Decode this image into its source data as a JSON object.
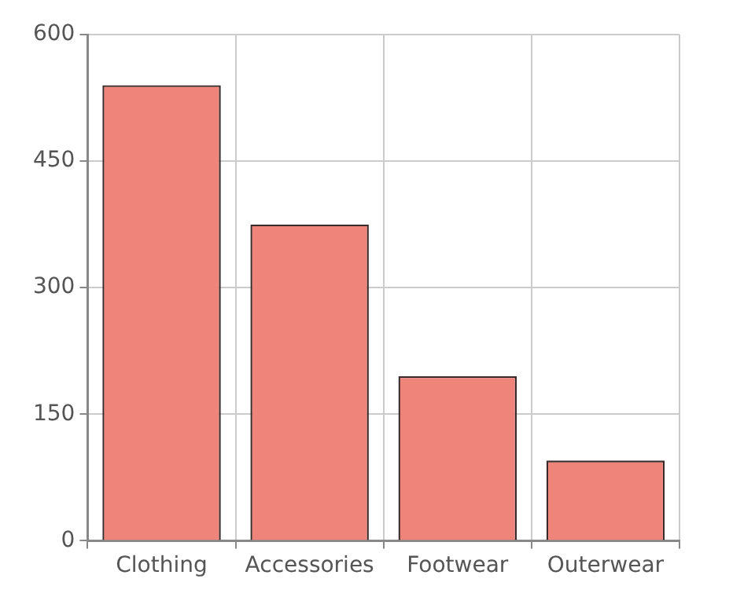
{
  "chart_data": {
    "type": "bar",
    "categories": [
      "Clothing",
      "Accessories",
      "Footwear",
      "Outerwear"
    ],
    "values": [
      540,
      375,
      195,
      95
    ],
    "color": "#ef857a",
    "ylim": [
      0,
      600
    ],
    "yticks": [
      0,
      150,
      300,
      450,
      600
    ],
    "grid": true
  }
}
